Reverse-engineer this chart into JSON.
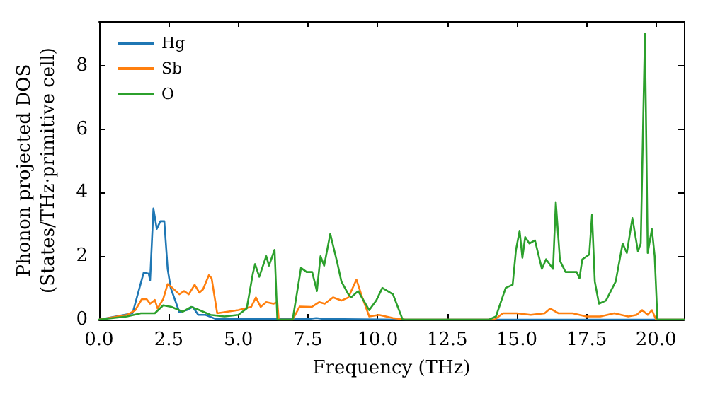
{
  "chart_data": {
    "type": "line",
    "xlabel": "Frequency (THz)",
    "ylabel": "Phonon projected DOS\n(States/THz·primitive cell)",
    "xlim": [
      0,
      21
    ],
    "ylim": [
      0,
      9.4
    ],
    "xticks": [
      {
        "value": 0,
        "label": "0.0"
      },
      {
        "value": 2.5,
        "label": "2.5"
      },
      {
        "value": 5,
        "label": "5.0"
      },
      {
        "value": 7.5,
        "label": "7.5"
      },
      {
        "value": 10,
        "label": "10.0"
      },
      {
        "value": 12.5,
        "label": "12.5"
      },
      {
        "value": 15,
        "label": "15.0"
      },
      {
        "value": 17.5,
        "label": "17.5"
      },
      {
        "value": 20,
        "label": "20.0"
      }
    ],
    "yticks": [
      0,
      2,
      4,
      6,
      8
    ],
    "grid": false,
    "legend": "top left",
    "marker": "none",
    "line_style": "solid",
    "series": [
      {
        "name": "Hg",
        "color": "#1f77b4",
        "x": [
          0,
          1.2,
          1.6,
          1.78,
          1.83,
          1.95,
          2.07,
          2.2,
          2.34,
          2.46,
          2.57,
          2.88,
          3.14,
          3.36,
          3.56,
          3.82,
          4.16,
          5,
          7.5,
          7.8,
          8.1,
          11,
          21
        ],
        "values": [
          0,
          0.2,
          1.48,
          1.45,
          1.24,
          3.5,
          2.86,
          3.1,
          3.1,
          1.6,
          1.0,
          0.24,
          0.3,
          0.4,
          0.15,
          0.15,
          0.03,
          0.02,
          0.02,
          0.05,
          0.02,
          0,
          0
        ]
      },
      {
        "name": "Sb",
        "color": "#ff7f0e",
        "x": [
          0,
          1.0,
          1.3,
          1.53,
          1.7,
          1.83,
          2.0,
          2.1,
          2.3,
          2.46,
          2.63,
          2.88,
          3.05,
          3.22,
          3.43,
          3.6,
          3.73,
          3.94,
          4.04,
          4.24,
          5.0,
          5.46,
          5.63,
          5.8,
          6.0,
          6.26,
          6.4,
          6.45,
          6.95,
          7.2,
          7.63,
          7.9,
          8.1,
          8.4,
          8.7,
          8.95,
          9.24,
          9.45,
          9.7,
          10.05,
          10.55,
          11,
          14.2,
          14.5,
          15.0,
          15.5,
          16.0,
          16.2,
          16.5,
          17.0,
          17.5,
          18.0,
          18.5,
          19.0,
          19.3,
          19.5,
          19.7,
          19.85,
          20.0,
          21
        ],
        "values": [
          0,
          0.15,
          0.3,
          0.64,
          0.65,
          0.5,
          0.62,
          0.35,
          0.65,
          1.12,
          1.0,
          0.8,
          0.9,
          0.8,
          1.1,
          0.85,
          0.95,
          1.4,
          1.3,
          0.2,
          0.3,
          0.4,
          0.7,
          0.4,
          0.55,
          0.5,
          0.55,
          0,
          0,
          0.41,
          0.4,
          0.55,
          0.5,
          0.7,
          0.6,
          0.7,
          1.26,
          0.7,
          0.1,
          0.15,
          0.05,
          0,
          0,
          0.2,
          0.2,
          0.15,
          0.2,
          0.35,
          0.2,
          0.2,
          0.1,
          0.1,
          0.2,
          0.1,
          0.15,
          0.3,
          0.15,
          0.3,
          0,
          0
        ]
      },
      {
        "name": "O",
        "color": "#2ca02c",
        "x": [
          0,
          1.0,
          1.5,
          2.0,
          2.3,
          2.6,
          3.0,
          3.3,
          3.6,
          4.0,
          4.5,
          5.0,
          5.3,
          5.52,
          5.6,
          5.75,
          6.0,
          6.1,
          6.3,
          6.4,
          6.95,
          7.25,
          7.45,
          7.65,
          7.82,
          7.95,
          8.08,
          8.3,
          8.55,
          8.7,
          8.95,
          9.05,
          9.3,
          9.7,
          9.95,
          10.17,
          10.55,
          10.9,
          14.0,
          14.25,
          14.6,
          14.85,
          14.97,
          15.1,
          15.2,
          15.3,
          15.45,
          15.65,
          15.9,
          16.05,
          16.3,
          16.4,
          16.55,
          16.75,
          17.15,
          17.25,
          17.35,
          17.6,
          17.7,
          17.8,
          17.95,
          18.2,
          18.55,
          18.8,
          18.95,
          19.15,
          19.35,
          19.45,
          19.6,
          19.7,
          19.85,
          19.95,
          20.05,
          21
        ],
        "values": [
          0,
          0.1,
          0.2,
          0.2,
          0.45,
          0.4,
          0.25,
          0.4,
          0.3,
          0.15,
          0.1,
          0.15,
          0.35,
          1.45,
          1.75,
          1.35,
          2.0,
          1.7,
          2.2,
          0,
          0,
          1.63,
          1.5,
          1.5,
          0.9,
          2.0,
          1.7,
          2.7,
          1.8,
          1.2,
          0.8,
          0.7,
          0.9,
          0.3,
          0.6,
          1.0,
          0.8,
          0,
          0,
          0.1,
          1.0,
          1.1,
          2.2,
          2.8,
          1.95,
          2.6,
          2.4,
          2.5,
          1.6,
          1.9,
          1.6,
          3.7,
          1.85,
          1.5,
          1.5,
          1.3,
          1.9,
          2.05,
          3.3,
          1.2,
          0.5,
          0.6,
          1.2,
          2.4,
          2.1,
          3.2,
          2.15,
          2.4,
          9.0,
          2.1,
          2.85,
          2.0,
          0,
          0
        ]
      }
    ]
  }
}
